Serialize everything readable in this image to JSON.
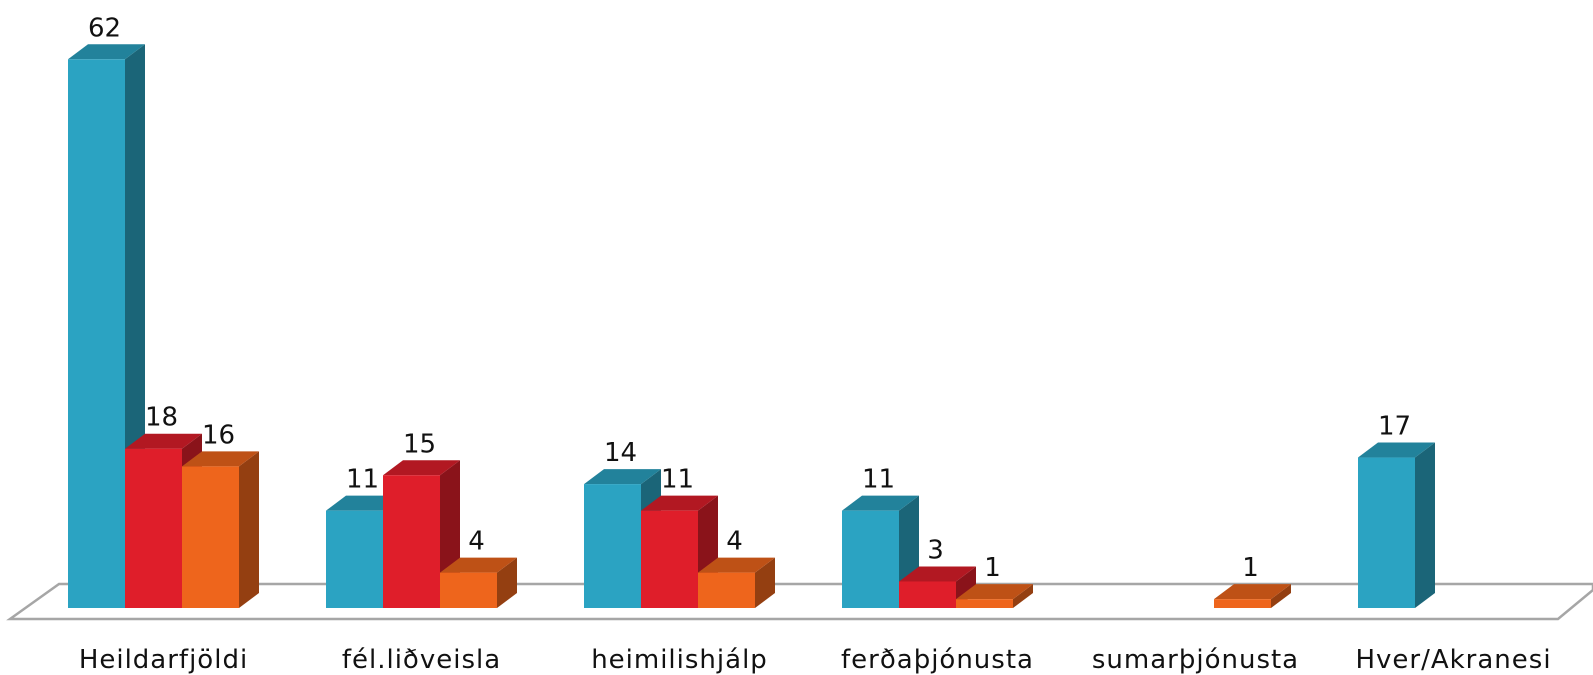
{
  "chart_data": {
    "type": "bar",
    "style": "3d-clustered-column",
    "categories": [
      "Heildarfjöldi",
      "fél.liðveisla",
      "heimilishjálp",
      "ferðaþjónusta",
      "sumarþjónusta",
      "Hver/Akranesi"
    ],
    "series": [
      {
        "color": "#2ba3c2",
        "values": [
          62,
          11,
          14,
          11,
          null,
          17
        ]
      },
      {
        "color": "#df1e2a",
        "values": [
          18,
          15,
          11,
          3,
          null,
          null
        ]
      },
      {
        "color": "#ee651c",
        "values": [
          16,
          4,
          4,
          1,
          1,
          null
        ]
      }
    ],
    "ylim": [
      0,
      62
    ],
    "grid": false,
    "legend": "none",
    "floor_color": "#a6a6a6"
  }
}
